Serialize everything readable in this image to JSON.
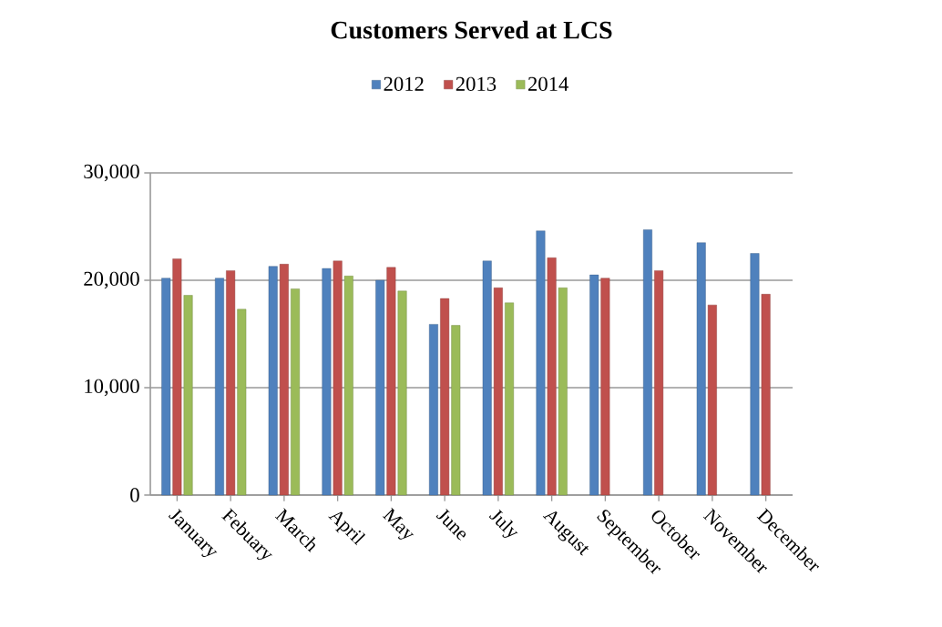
{
  "chart_data": {
    "type": "bar",
    "title": "Customers Served at LCS",
    "categories": [
      "January",
      "Febuary",
      "March",
      "April",
      "May",
      "June",
      "July",
      "August",
      "September",
      "October",
      "November",
      "December"
    ],
    "series": [
      {
        "name": "2012",
        "color": "#4f81bd",
        "values": [
          20200,
          20200,
          21300,
          21100,
          20000,
          15900,
          21800,
          24600,
          20500,
          24700,
          23500,
          22500
        ]
      },
      {
        "name": "2013",
        "color": "#c0504d",
        "values": [
          22000,
          20900,
          21500,
          21800,
          21200,
          18300,
          19300,
          22100,
          20200,
          20900,
          17700,
          18700
        ]
      },
      {
        "name": "2014",
        "color": "#9bbb59",
        "values": [
          18600,
          17300,
          19200,
          20400,
          19000,
          15800,
          17900,
          19300,
          null,
          null,
          null,
          null
        ]
      }
    ],
    "ylim": [
      0,
      30000
    ],
    "yticks": [
      {
        "value": 0,
        "label": "0"
      },
      {
        "value": 10000,
        "label": "10,000"
      },
      {
        "value": 20000,
        "label": "20,000"
      },
      {
        "value": 30000,
        "label": "30,000"
      }
    ],
    "grid": "y",
    "legend": "top"
  }
}
